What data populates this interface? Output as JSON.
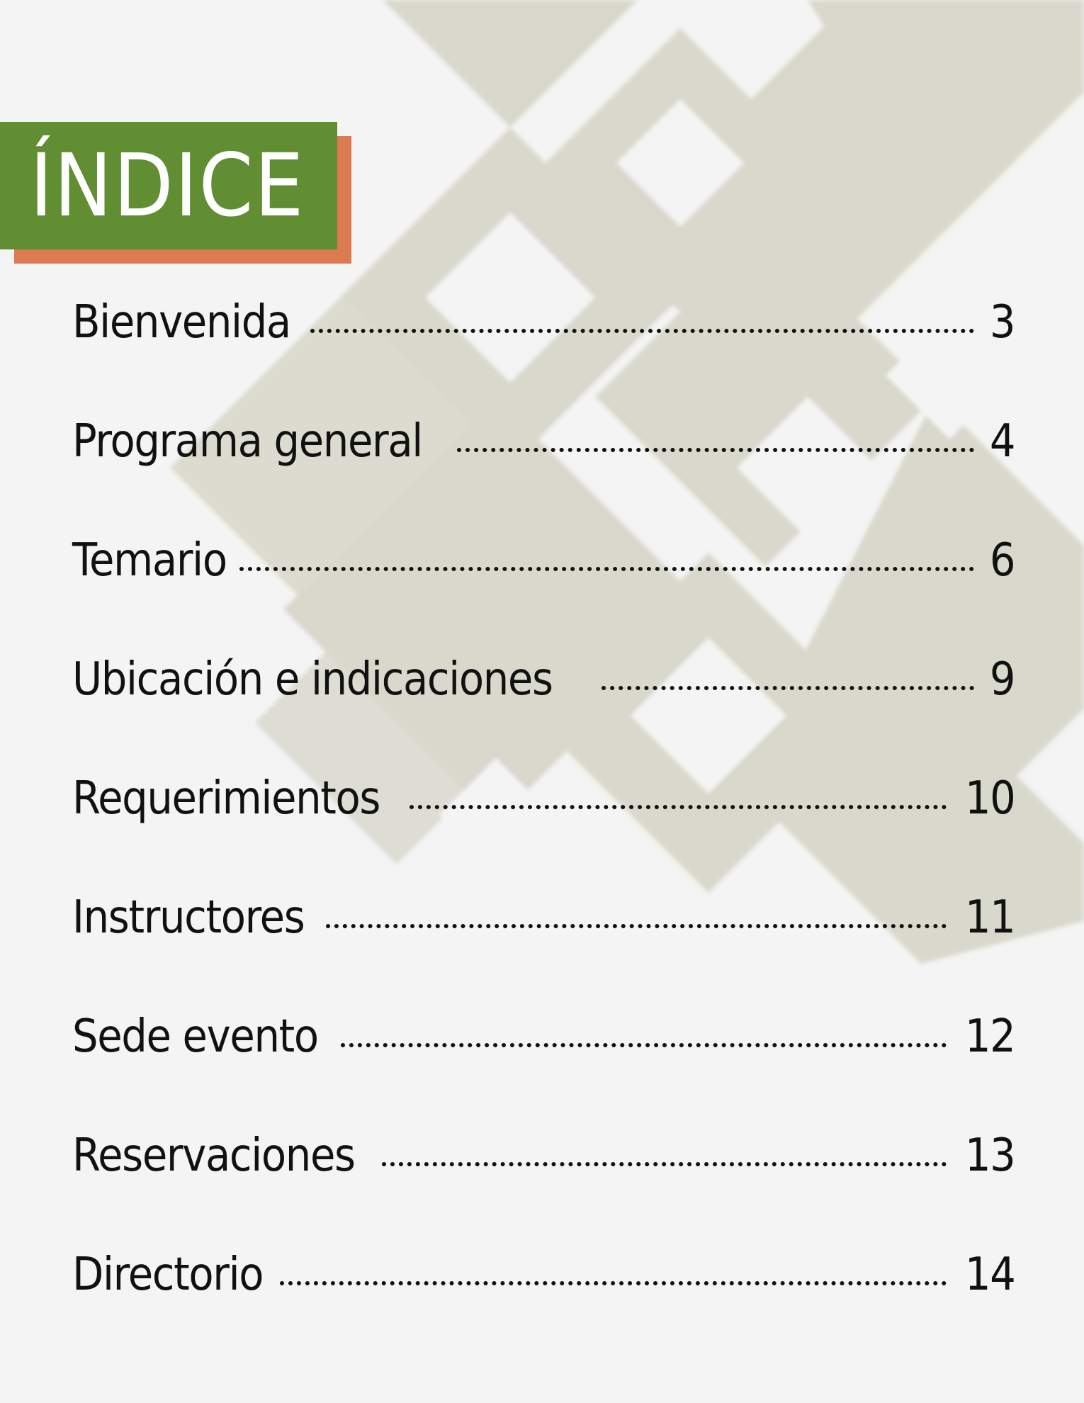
{
  "title": "ÍNDICE",
  "colors": {
    "title_bg": "#628e33",
    "title_shadow": "#dc7a50",
    "pattern": "#d9d8cc",
    "page_bg": "#f4f4f4"
  },
  "toc": [
    {
      "label": "Bienvenida",
      "page": "3"
    },
    {
      "label": "Programa general",
      "page": "4"
    },
    {
      "label": "Temario",
      "page": "6"
    },
    {
      "label": "Ubicación e indicaciones",
      "page": "9"
    },
    {
      "label": "Requerimientos",
      "page": "10"
    },
    {
      "label": "Instructores",
      "page": "11"
    },
    {
      "label": "Sede evento",
      "page": "12"
    },
    {
      "label": "Reservaciones",
      "page": "13"
    },
    {
      "label": "Directorio",
      "page": "14"
    }
  ]
}
